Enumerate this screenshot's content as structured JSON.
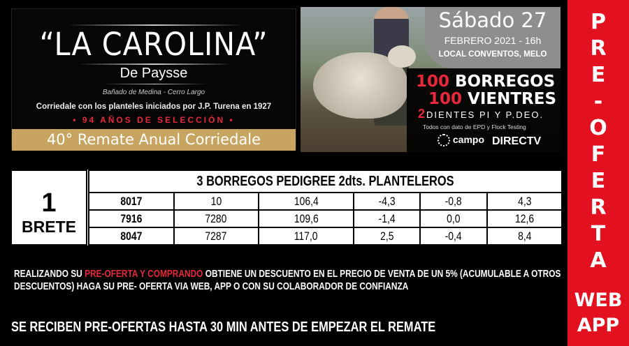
{
  "logo": {
    "title": "“LA CAROLINA”",
    "subtitle": "De Paysse",
    "place": "Bañado de Medina - Cerro Largo",
    "founded": "Corriedale con los planteles iniciados por J.P. Turena en 1927",
    "years": "• 94 AÑOS DE SELECCIÓN •",
    "remate": "40° Remate Anual Corriedale",
    "gold_color": "#c7a460"
  },
  "event": {
    "day": "Sábado 27",
    "month": "FEBRERO 2021 - 16h",
    "location": "LOCAL CONVENTOS, MELO",
    "line1_num": "100",
    "line1_text": "BORREGOS",
    "line2_num": "100",
    "line2_text": "VIENTRES",
    "line3_num": "2",
    "line3_text": "DIENTES PI Y P.DEO.",
    "line4": "Todos con dato de EPD y Flock Testing",
    "campo_logo": "campo tv",
    "directv_logo": "DIRECTV"
  },
  "table": {
    "brete_number": "1",
    "brete_label": "BRETE",
    "header": "3 BORREGOS PEDIGREE  2dts. PLANTELEROS",
    "rows": [
      [
        "8017",
        "10",
        "106,4",
        "-4,3",
        "-0,8",
        "4,3"
      ],
      [
        "7916",
        "7280",
        "109,6",
        "-1,4",
        "0,0",
        "12,6"
      ],
      [
        "8047",
        "7287",
        "117,0",
        "2,5",
        "-0,4",
        "8,4"
      ]
    ]
  },
  "promo": {
    "part1": "REALIZANDO SU ",
    "highlight": "PRE-OFERTA Y COMPRANDO",
    "part2": "  OBTIENE UN DESCUENTO EN EL PRECIO DE VENTA DE UN 5%  (ACUMULABLE A OTROS DESCUENTOS) HAGA SU PRE- OFERTA VIA WEB, APP O CON SU COLABORADOR DE CONFIANZA",
    "notice": "SE RECIBEN PRE-OFERTAS HASTA 30 MIN ANTES DE EMPEZAR EL REMATE",
    "highlight_color": "#e8283a"
  },
  "sidebar": {
    "letters": [
      "P",
      "R",
      "E",
      "-",
      "O",
      "F",
      "E",
      "R",
      "T",
      "A"
    ],
    "web": "WEB",
    "app": "APP",
    "color": "#e3101f"
  }
}
